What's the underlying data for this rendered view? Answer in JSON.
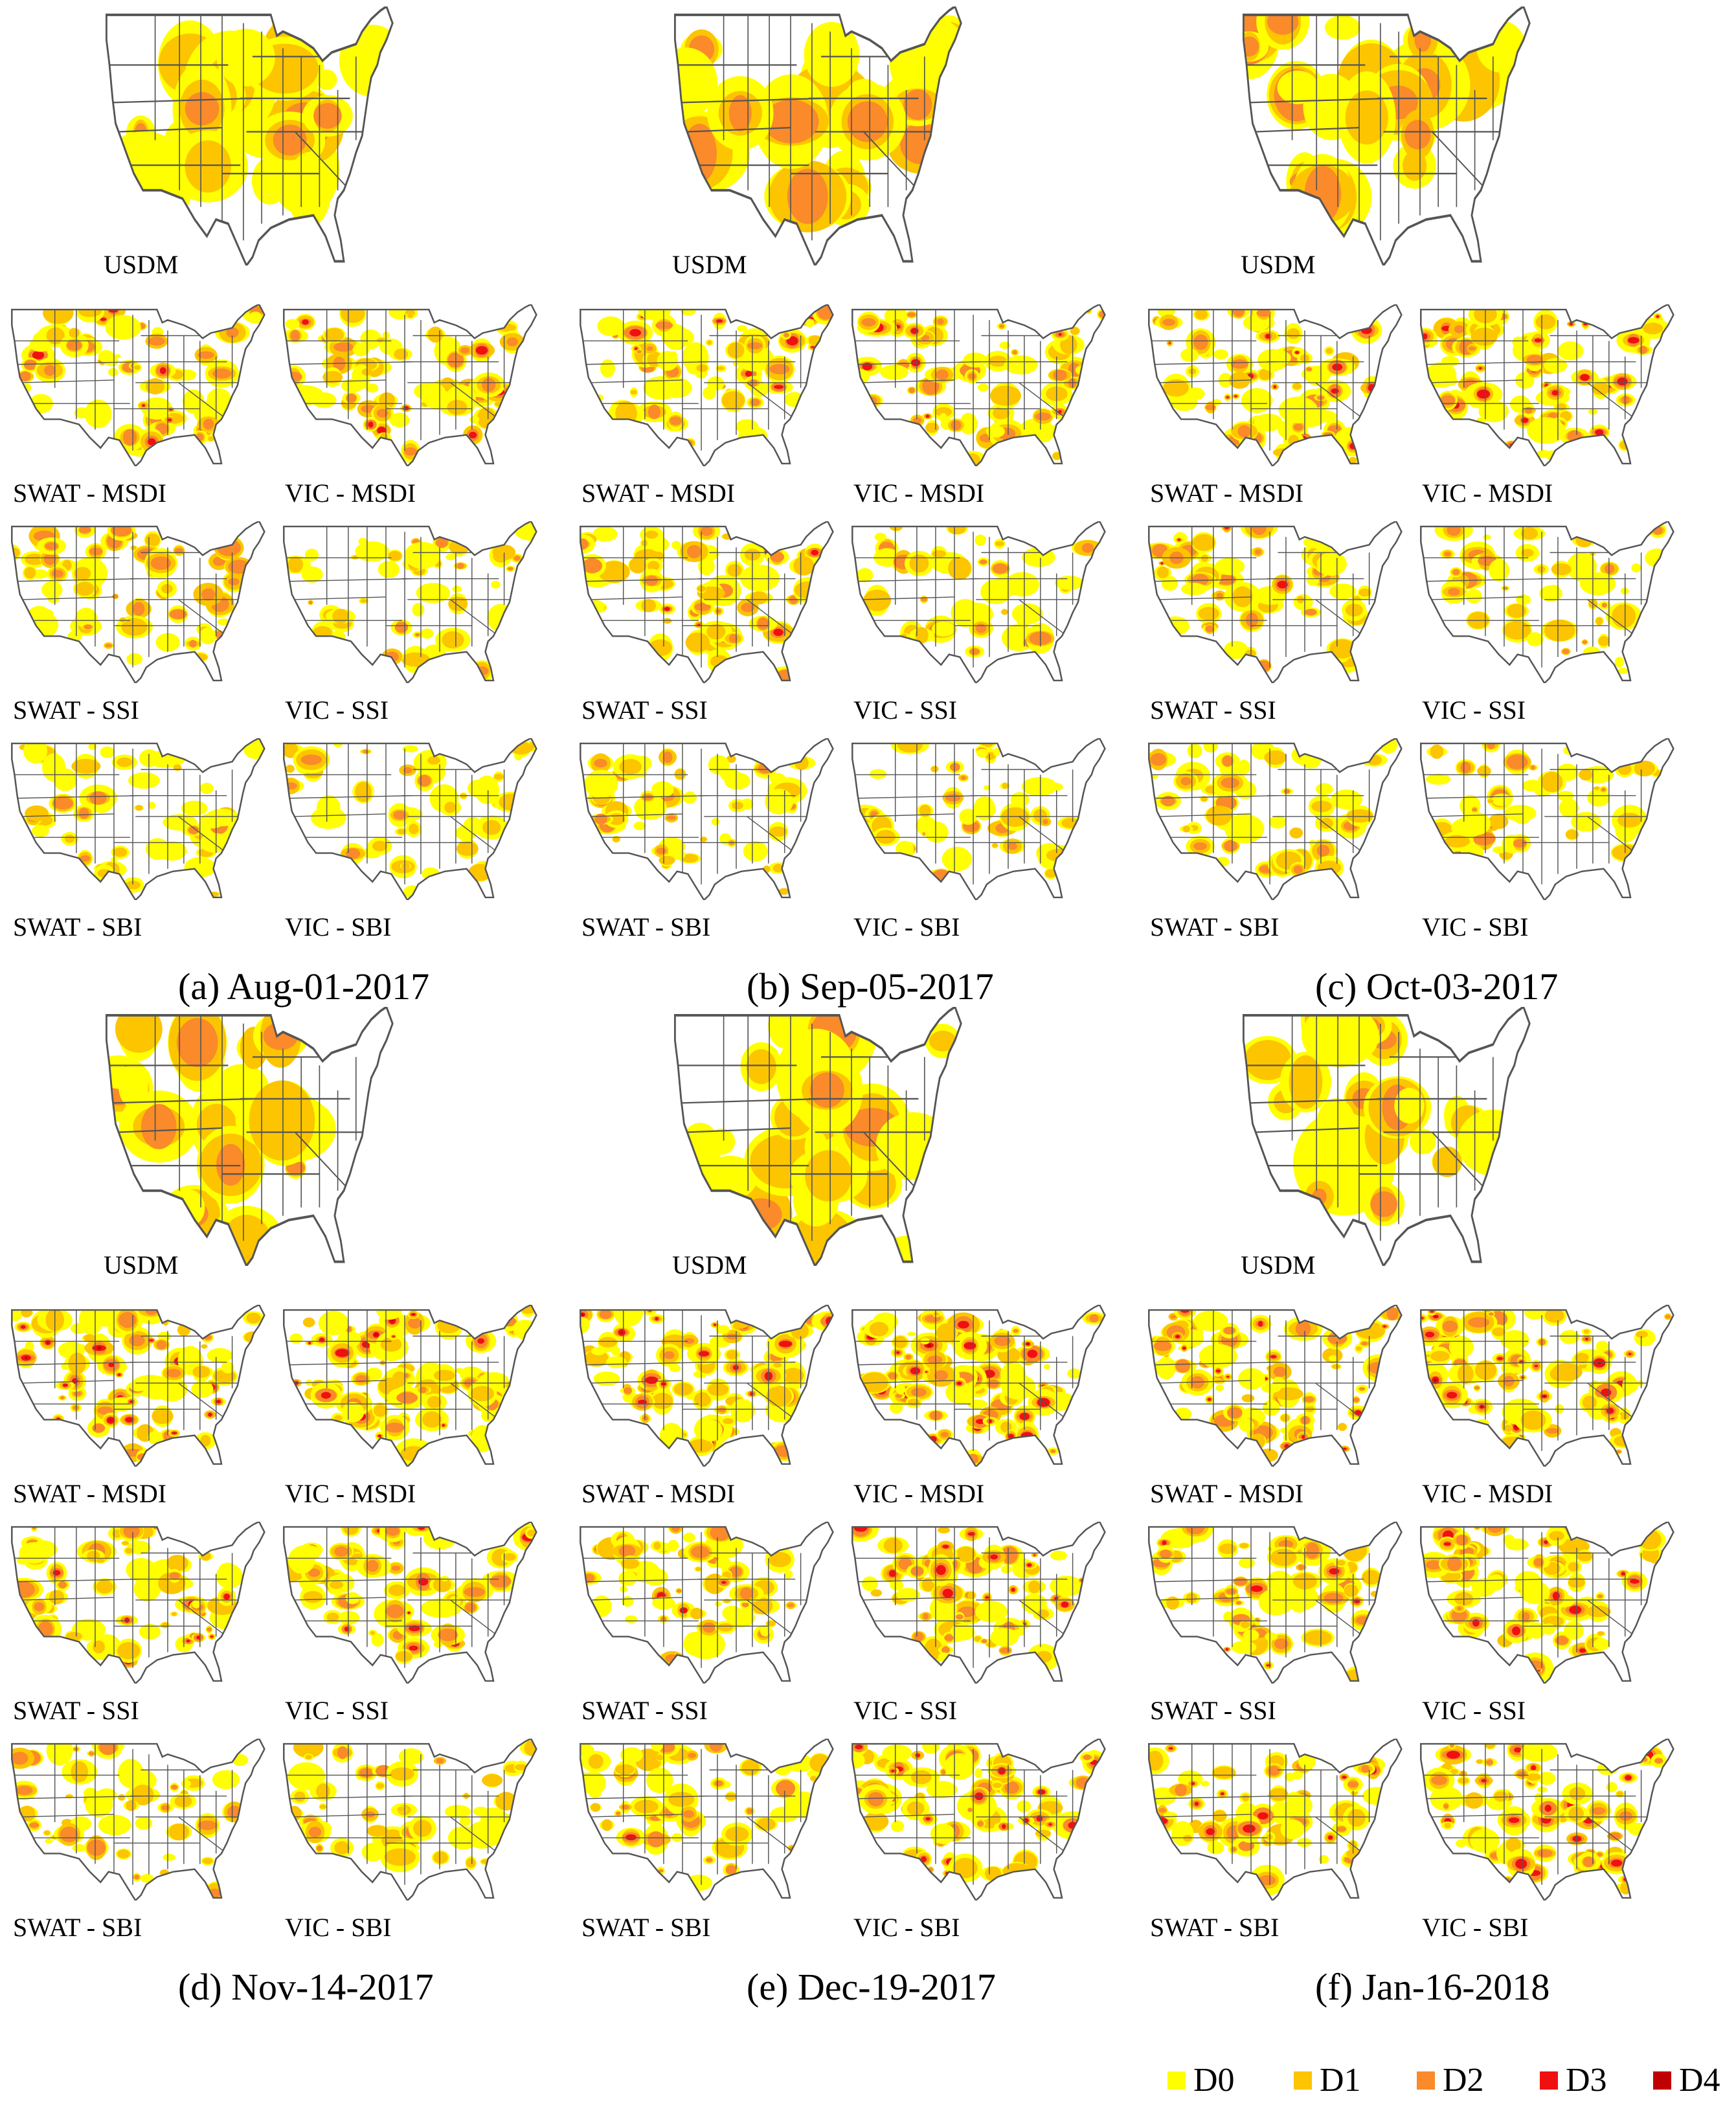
{
  "figure": {
    "colors": {
      "D0": "#ffff00",
      "D1": "#fcc500",
      "D2": "#fa8a2a",
      "D3": "#f01010",
      "D4": "#c00000",
      "border": "#555555",
      "background": "#ffffff"
    },
    "panels": [
      {
        "caption": "(a) Aug-01-2017",
        "usdm_label": "USDM",
        "models": [
          {
            "label": "SWAT - MSDI",
            "index": "MSDI",
            "severity": 0.55
          },
          {
            "label": "VIC - MSDI",
            "index": "MSDI",
            "severity": 0.5
          },
          {
            "label": "SWAT - SSI",
            "index": "SSI",
            "severity": 0.35
          },
          {
            "label": "VIC - SSI",
            "index": "SSI",
            "severity": 0.2
          },
          {
            "label": "SWAT - SBI",
            "index": "SBI",
            "severity": 0.3
          },
          {
            "label": "VIC - SBI",
            "index": "SBI",
            "severity": 0.25
          }
        ]
      },
      {
        "caption": "(b) Sep-05-2017",
        "usdm_label": "USDM",
        "models": [
          {
            "label": "SWAT - MSDI",
            "index": "MSDI",
            "severity": 0.55
          },
          {
            "label": "VIC - MSDI",
            "index": "MSDI",
            "severity": 0.5
          },
          {
            "label": "SWAT - SSI",
            "index": "SSI",
            "severity": 0.4
          },
          {
            "label": "VIC - SSI",
            "index": "SSI",
            "severity": 0.2
          },
          {
            "label": "SWAT - SBI",
            "index": "SBI",
            "severity": 0.3
          },
          {
            "label": "VIC - SBI",
            "index": "SBI",
            "severity": 0.2
          }
        ]
      },
      {
        "caption": "(c) Oct-03-2017",
        "usdm_label": "USDM",
        "models": [
          {
            "label": "SWAT - MSDI",
            "index": "MSDI",
            "severity": 0.65
          },
          {
            "label": "VIC - MSDI",
            "index": "MSDI",
            "severity": 0.6
          },
          {
            "label": "SWAT - SSI",
            "index": "SSI",
            "severity": 0.45
          },
          {
            "label": "VIC - SSI",
            "index": "SSI",
            "severity": 0.2
          },
          {
            "label": "SWAT - SBI",
            "index": "SBI",
            "severity": 0.25
          },
          {
            "label": "VIC - SBI",
            "index": "SBI",
            "severity": 0.25
          }
        ]
      },
      {
        "caption": "(d) Nov-14-2017",
        "usdm_label": "USDM",
        "models": [
          {
            "label": "SWAT - MSDI",
            "index": "MSDI",
            "severity": 0.85
          },
          {
            "label": "VIC - MSDI",
            "index": "MSDI",
            "severity": 0.85
          },
          {
            "label": "SWAT - SSI",
            "index": "SSI",
            "severity": 0.55
          },
          {
            "label": "VIC - SSI",
            "index": "SSI",
            "severity": 0.45
          },
          {
            "label": "SWAT - SBI",
            "index": "SBI",
            "severity": 0.3
          },
          {
            "label": "VIC - SBI",
            "index": "SBI",
            "severity": 0.3
          }
        ]
      },
      {
        "caption": "(e) Dec-19-2017",
        "usdm_label": "USDM",
        "models": [
          {
            "label": "SWAT - MSDI",
            "index": "MSDI",
            "severity": 0.75
          },
          {
            "label": "VIC - MSDI",
            "index": "MSDI",
            "severity": 0.85
          },
          {
            "label": "SWAT - SSI",
            "index": "SSI",
            "severity": 0.45
          },
          {
            "label": "VIC - SSI",
            "index": "SSI",
            "severity": 0.6
          },
          {
            "label": "SWAT - SBI",
            "index": "SBI",
            "severity": 0.35
          },
          {
            "label": "VIC - SBI",
            "index": "SBI",
            "severity": 0.6
          }
        ]
      },
      {
        "caption": "(f) Jan-16-2018",
        "usdm_label": "USDM",
        "models": [
          {
            "label": "SWAT - MSDI",
            "index": "MSDI",
            "severity": 0.7
          },
          {
            "label": "VIC - MSDI",
            "index": "MSDI",
            "severity": 0.85
          },
          {
            "label": "SWAT - SSI",
            "index": "SSI",
            "severity": 0.4
          },
          {
            "label": "VIC - SSI",
            "index": "SSI",
            "severity": 0.6
          },
          {
            "label": "SWAT - SBI",
            "index": "SBI",
            "severity": 0.45
          },
          {
            "label": "VIC - SBI",
            "index": "SBI",
            "severity": 0.65
          }
        ]
      }
    ],
    "legend": [
      {
        "label": "D0",
        "color": "#ffff00"
      },
      {
        "label": "D1",
        "color": "#fcc500"
      },
      {
        "label": "D2",
        "color": "#fa8a2a"
      },
      {
        "label": "D3",
        "color": "#f01010"
      },
      {
        "label": "D4",
        "color": "#c00000"
      }
    ]
  }
}
